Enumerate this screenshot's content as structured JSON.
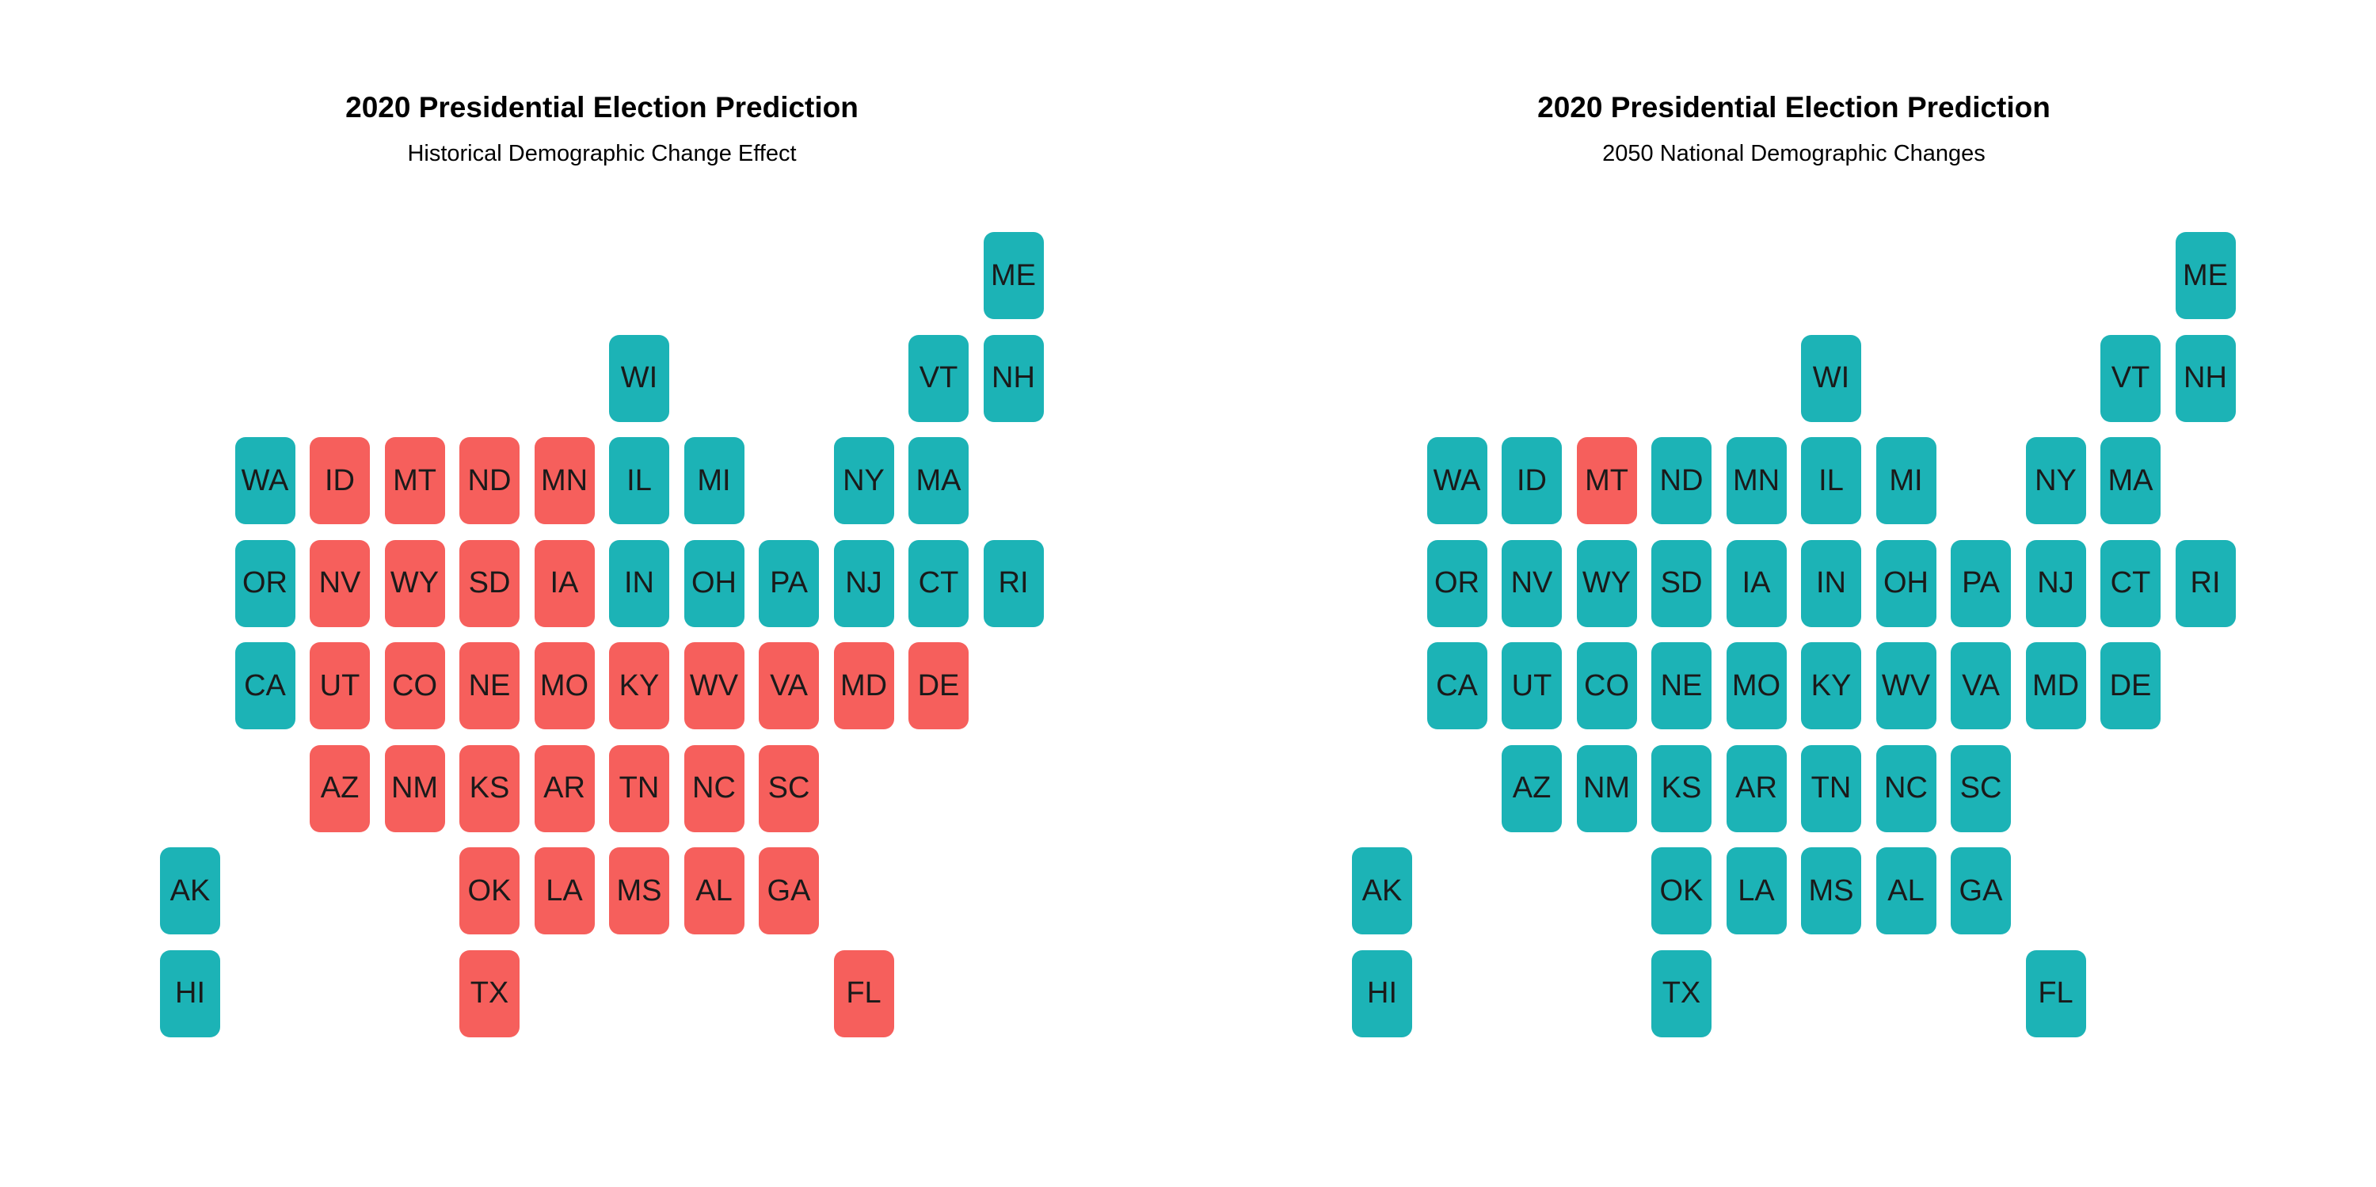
{
  "chart_data": [
    {
      "type": "heatmap",
      "title": "2020 Presidential Election Prediction",
      "subtitle": "Historical Demographic Change Effect",
      "tiles": [
        {
          "state": "ME",
          "col": 11,
          "row": 0,
          "party": "dem"
        },
        {
          "state": "WI",
          "col": 6,
          "row": 1,
          "party": "dem"
        },
        {
          "state": "VT",
          "col": 10,
          "row": 1,
          "party": "dem"
        },
        {
          "state": "NH",
          "col": 11,
          "row": 1,
          "party": "dem"
        },
        {
          "state": "WA",
          "col": 1,
          "row": 2,
          "party": "dem"
        },
        {
          "state": "ID",
          "col": 2,
          "row": 2,
          "party": "rep"
        },
        {
          "state": "MT",
          "col": 3,
          "row": 2,
          "party": "rep"
        },
        {
          "state": "ND",
          "col": 4,
          "row": 2,
          "party": "rep"
        },
        {
          "state": "MN",
          "col": 5,
          "row": 2,
          "party": "rep"
        },
        {
          "state": "IL",
          "col": 6,
          "row": 2,
          "party": "dem"
        },
        {
          "state": "MI",
          "col": 7,
          "row": 2,
          "party": "dem"
        },
        {
          "state": "NY",
          "col": 9,
          "row": 2,
          "party": "dem"
        },
        {
          "state": "MA",
          "col": 10,
          "row": 2,
          "party": "dem"
        },
        {
          "state": "OR",
          "col": 1,
          "row": 3,
          "party": "dem"
        },
        {
          "state": "NV",
          "col": 2,
          "row": 3,
          "party": "rep"
        },
        {
          "state": "WY",
          "col": 3,
          "row": 3,
          "party": "rep"
        },
        {
          "state": "SD",
          "col": 4,
          "row": 3,
          "party": "rep"
        },
        {
          "state": "IA",
          "col": 5,
          "row": 3,
          "party": "rep"
        },
        {
          "state": "IN",
          "col": 6,
          "row": 3,
          "party": "dem"
        },
        {
          "state": "OH",
          "col": 7,
          "row": 3,
          "party": "dem"
        },
        {
          "state": "PA",
          "col": 8,
          "row": 3,
          "party": "dem"
        },
        {
          "state": "NJ",
          "col": 9,
          "row": 3,
          "party": "dem"
        },
        {
          "state": "CT",
          "col": 10,
          "row": 3,
          "party": "dem"
        },
        {
          "state": "RI",
          "col": 11,
          "row": 3,
          "party": "dem"
        },
        {
          "state": "CA",
          "col": 1,
          "row": 4,
          "party": "dem"
        },
        {
          "state": "UT",
          "col": 2,
          "row": 4,
          "party": "rep"
        },
        {
          "state": "CO",
          "col": 3,
          "row": 4,
          "party": "rep"
        },
        {
          "state": "NE",
          "col": 4,
          "row": 4,
          "party": "rep"
        },
        {
          "state": "MO",
          "col": 5,
          "row": 4,
          "party": "rep"
        },
        {
          "state": "KY",
          "col": 6,
          "row": 4,
          "party": "rep"
        },
        {
          "state": "WV",
          "col": 7,
          "row": 4,
          "party": "rep"
        },
        {
          "state": "VA",
          "col": 8,
          "row": 4,
          "party": "rep"
        },
        {
          "state": "MD",
          "col": 9,
          "row": 4,
          "party": "rep"
        },
        {
          "state": "DE",
          "col": 10,
          "row": 4,
          "party": "rep"
        },
        {
          "state": "AZ",
          "col": 2,
          "row": 5,
          "party": "rep"
        },
        {
          "state": "NM",
          "col": 3,
          "row": 5,
          "party": "rep"
        },
        {
          "state": "KS",
          "col": 4,
          "row": 5,
          "party": "rep"
        },
        {
          "state": "AR",
          "col": 5,
          "row": 5,
          "party": "rep"
        },
        {
          "state": "TN",
          "col": 6,
          "row": 5,
          "party": "rep"
        },
        {
          "state": "NC",
          "col": 7,
          "row": 5,
          "party": "rep"
        },
        {
          "state": "SC",
          "col": 8,
          "row": 5,
          "party": "rep"
        },
        {
          "state": "AK",
          "col": 0,
          "row": 6,
          "party": "dem"
        },
        {
          "state": "OK",
          "col": 4,
          "row": 6,
          "party": "rep"
        },
        {
          "state": "LA",
          "col": 5,
          "row": 6,
          "party": "rep"
        },
        {
          "state": "MS",
          "col": 6,
          "row": 6,
          "party": "rep"
        },
        {
          "state": "AL",
          "col": 7,
          "row": 6,
          "party": "rep"
        },
        {
          "state": "GA",
          "col": 8,
          "row": 6,
          "party": "rep"
        },
        {
          "state": "HI",
          "col": 0,
          "row": 7,
          "party": "dem"
        },
        {
          "state": "TX",
          "col": 4,
          "row": 7,
          "party": "rep"
        },
        {
          "state": "FL",
          "col": 9,
          "row": 7,
          "party": "rep"
        }
      ]
    },
    {
      "type": "heatmap",
      "title": "2020 Presidential Election Prediction",
      "subtitle": "2050 National Demographic Changes",
      "tiles": [
        {
          "state": "ME",
          "col": 11,
          "row": 0,
          "party": "dem"
        },
        {
          "state": "WI",
          "col": 6,
          "row": 1,
          "party": "dem"
        },
        {
          "state": "VT",
          "col": 10,
          "row": 1,
          "party": "dem"
        },
        {
          "state": "NH",
          "col": 11,
          "row": 1,
          "party": "dem"
        },
        {
          "state": "WA",
          "col": 1,
          "row": 2,
          "party": "dem"
        },
        {
          "state": "ID",
          "col": 2,
          "row": 2,
          "party": "dem"
        },
        {
          "state": "MT",
          "col": 3,
          "row": 2,
          "party": "rep"
        },
        {
          "state": "ND",
          "col": 4,
          "row": 2,
          "party": "dem"
        },
        {
          "state": "MN",
          "col": 5,
          "row": 2,
          "party": "dem"
        },
        {
          "state": "IL",
          "col": 6,
          "row": 2,
          "party": "dem"
        },
        {
          "state": "MI",
          "col": 7,
          "row": 2,
          "party": "dem"
        },
        {
          "state": "NY",
          "col": 9,
          "row": 2,
          "party": "dem"
        },
        {
          "state": "MA",
          "col": 10,
          "row": 2,
          "party": "dem"
        },
        {
          "state": "OR",
          "col": 1,
          "row": 3,
          "party": "dem"
        },
        {
          "state": "NV",
          "col": 2,
          "row": 3,
          "party": "dem"
        },
        {
          "state": "WY",
          "col": 3,
          "row": 3,
          "party": "dem"
        },
        {
          "state": "SD",
          "col": 4,
          "row": 3,
          "party": "dem"
        },
        {
          "state": "IA",
          "col": 5,
          "row": 3,
          "party": "dem"
        },
        {
          "state": "IN",
          "col": 6,
          "row": 3,
          "party": "dem"
        },
        {
          "state": "OH",
          "col": 7,
          "row": 3,
          "party": "dem"
        },
        {
          "state": "PA",
          "col": 8,
          "row": 3,
          "party": "dem"
        },
        {
          "state": "NJ",
          "col": 9,
          "row": 3,
          "party": "dem"
        },
        {
          "state": "CT",
          "col": 10,
          "row": 3,
          "party": "dem"
        },
        {
          "state": "RI",
          "col": 11,
          "row": 3,
          "party": "dem"
        },
        {
          "state": "CA",
          "col": 1,
          "row": 4,
          "party": "dem"
        },
        {
          "state": "UT",
          "col": 2,
          "row": 4,
          "party": "dem"
        },
        {
          "state": "CO",
          "col": 3,
          "row": 4,
          "party": "dem"
        },
        {
          "state": "NE",
          "col": 4,
          "row": 4,
          "party": "dem"
        },
        {
          "state": "MO",
          "col": 5,
          "row": 4,
          "party": "dem"
        },
        {
          "state": "KY",
          "col": 6,
          "row": 4,
          "party": "dem"
        },
        {
          "state": "WV",
          "col": 7,
          "row": 4,
          "party": "dem"
        },
        {
          "state": "VA",
          "col": 8,
          "row": 4,
          "party": "dem"
        },
        {
          "state": "MD",
          "col": 9,
          "row": 4,
          "party": "dem"
        },
        {
          "state": "DE",
          "col": 10,
          "row": 4,
          "party": "dem"
        },
        {
          "state": "AZ",
          "col": 2,
          "row": 5,
          "party": "dem"
        },
        {
          "state": "NM",
          "col": 3,
          "row": 5,
          "party": "dem"
        },
        {
          "state": "KS",
          "col": 4,
          "row": 5,
          "party": "dem"
        },
        {
          "state": "AR",
          "col": 5,
          "row": 5,
          "party": "dem"
        },
        {
          "state": "TN",
          "col": 6,
          "row": 5,
          "party": "dem"
        },
        {
          "state": "NC",
          "col": 7,
          "row": 5,
          "party": "dem"
        },
        {
          "state": "SC",
          "col": 8,
          "row": 5,
          "party": "dem"
        },
        {
          "state": "AK",
          "col": 0,
          "row": 6,
          "party": "dem"
        },
        {
          "state": "OK",
          "col": 4,
          "row": 6,
          "party": "dem"
        },
        {
          "state": "LA",
          "col": 5,
          "row": 6,
          "party": "dem"
        },
        {
          "state": "MS",
          "col": 6,
          "row": 6,
          "party": "dem"
        },
        {
          "state": "AL",
          "col": 7,
          "row": 6,
          "party": "dem"
        },
        {
          "state": "GA",
          "col": 8,
          "row": 6,
          "party": "dem"
        },
        {
          "state": "HI",
          "col": 0,
          "row": 7,
          "party": "dem"
        },
        {
          "state": "TX",
          "col": 4,
          "row": 7,
          "party": "dem"
        },
        {
          "state": "FL",
          "col": 9,
          "row": 7,
          "party": "dem"
        }
      ]
    }
  ],
  "colors": {
    "dem": "#1CB3B6",
    "rep": "#F65F5C"
  }
}
